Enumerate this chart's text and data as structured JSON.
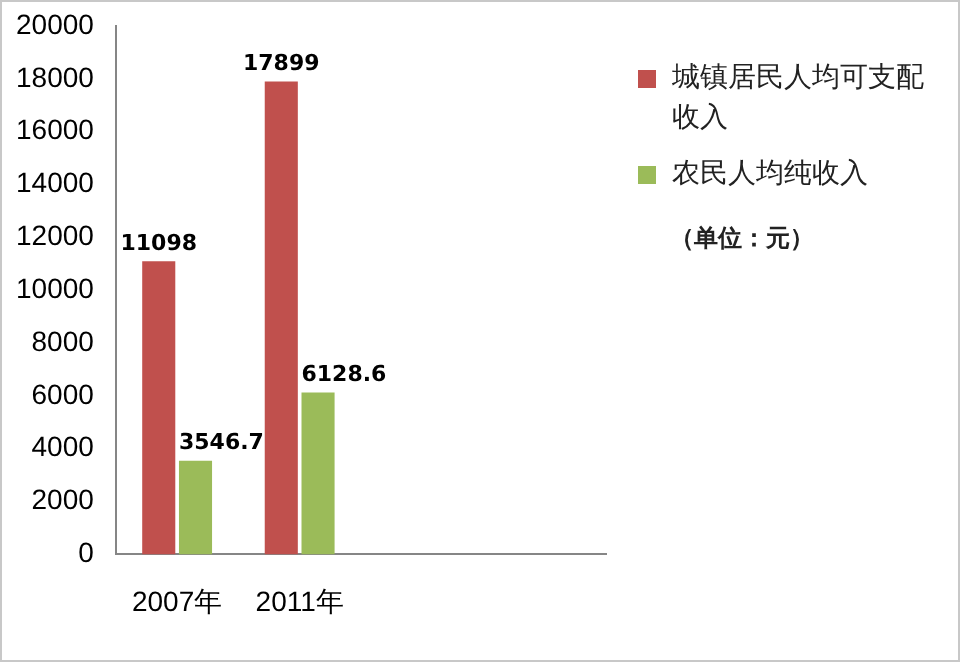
{
  "chart_data": {
    "type": "bar",
    "categories": [
      "2007年",
      "2011年",
      null,
      null
    ],
    "series": [
      {
        "name": "城镇居民人均可支配收入",
        "color": "#c0504d",
        "values": [
          11098,
          17899,
          null,
          null
        ]
      },
      {
        "name": "农民人均纯收入",
        "color": "#9bbb59",
        "values": [
          3546.7,
          6128.6,
          null,
          null
        ]
      }
    ],
    "ylim": [
      0,
      20000
    ],
    "yticks": [
      0,
      2000,
      4000,
      6000,
      8000,
      10000,
      12000,
      14000,
      16000,
      18000,
      20000
    ],
    "grid": false,
    "legend": "right",
    "data_labels": true,
    "annotations": [
      "（单位：元）"
    ]
  }
}
